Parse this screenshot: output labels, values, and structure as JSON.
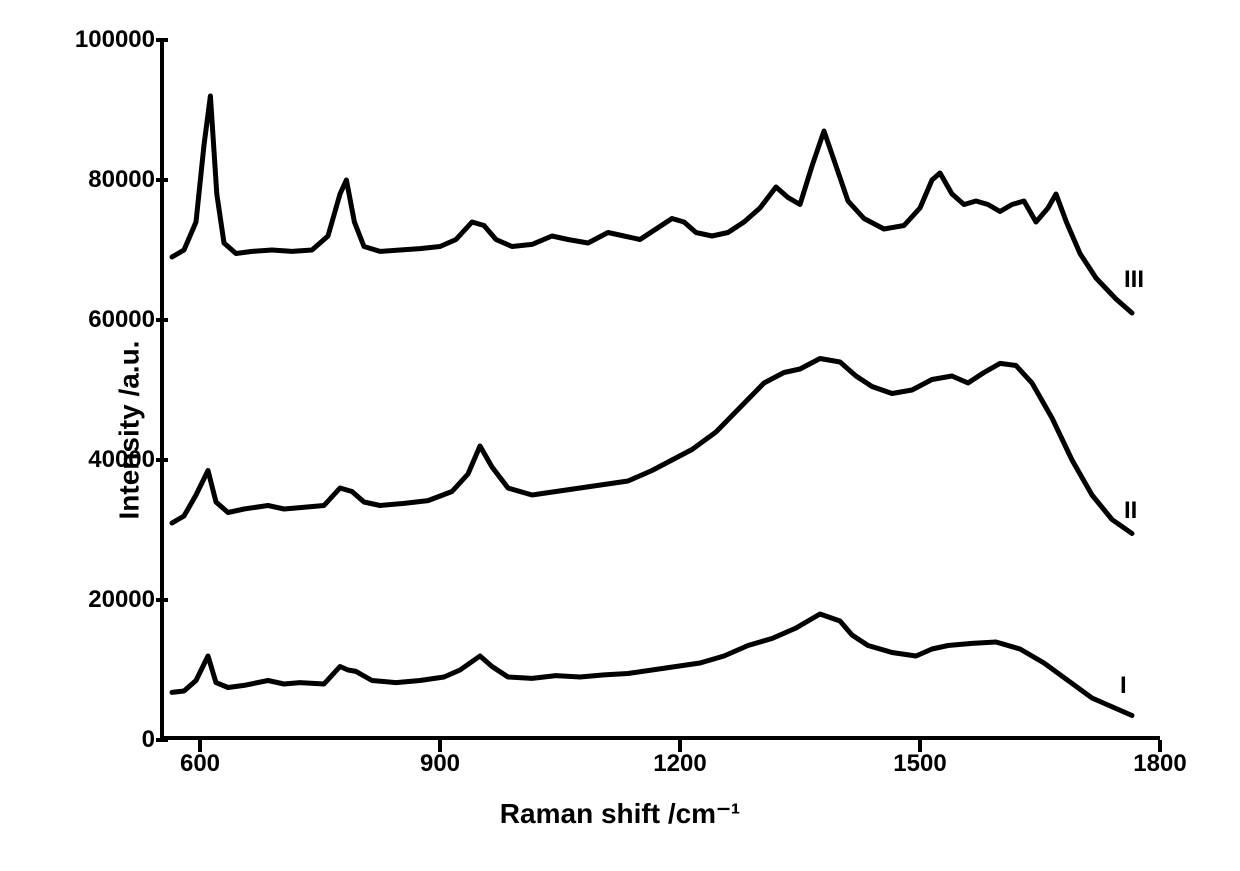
{
  "chart": {
    "type": "line",
    "xlabel": "Raman shift /cm⁻¹",
    "ylabel": "Intensity /a.u.",
    "label_fontsize": 28,
    "tick_fontsize": 24,
    "background_color": "#ffffff",
    "line_color": "#000000",
    "line_width": 5,
    "xlim": [
      550,
      1800
    ],
    "ylim": [
      0,
      100000
    ],
    "xticks": [
      600,
      900,
      1200,
      1500,
      1800
    ],
    "yticks": [
      0,
      20000,
      40000,
      60000,
      80000,
      100000
    ],
    "ytick_labels": [
      "0",
      "20000",
      "40000",
      "60000",
      "80000",
      "100000"
    ],
    "xtick_labels": [
      "600",
      "900",
      "1200",
      "1500",
      "1800"
    ],
    "series": [
      {
        "label": "I",
        "label_x": 1750,
        "label_y": 8000,
        "points": [
          [
            560,
            6800
          ],
          [
            575,
            7000
          ],
          [
            590,
            8500
          ],
          [
            605,
            12000
          ],
          [
            615,
            8200
          ],
          [
            630,
            7500
          ],
          [
            650,
            7800
          ],
          [
            680,
            8500
          ],
          [
            700,
            8000
          ],
          [
            720,
            8200
          ],
          [
            750,
            8000
          ],
          [
            770,
            10500
          ],
          [
            780,
            10000
          ],
          [
            790,
            9800
          ],
          [
            810,
            8500
          ],
          [
            840,
            8200
          ],
          [
            870,
            8500
          ],
          [
            900,
            9000
          ],
          [
            920,
            10000
          ],
          [
            945,
            12000
          ],
          [
            960,
            10500
          ],
          [
            980,
            9000
          ],
          [
            1010,
            8800
          ],
          [
            1040,
            9200
          ],
          [
            1070,
            9000
          ],
          [
            1100,
            9300
          ],
          [
            1130,
            9500
          ],
          [
            1160,
            10000
          ],
          [
            1190,
            10500
          ],
          [
            1220,
            11000
          ],
          [
            1250,
            12000
          ],
          [
            1280,
            13500
          ],
          [
            1310,
            14500
          ],
          [
            1340,
            16000
          ],
          [
            1370,
            18000
          ],
          [
            1395,
            17000
          ],
          [
            1410,
            15000
          ],
          [
            1430,
            13500
          ],
          [
            1460,
            12500
          ],
          [
            1490,
            12000
          ],
          [
            1510,
            13000
          ],
          [
            1530,
            13500
          ],
          [
            1560,
            13800
          ],
          [
            1590,
            14000
          ],
          [
            1620,
            13000
          ],
          [
            1650,
            11000
          ],
          [
            1680,
            8500
          ],
          [
            1710,
            6000
          ],
          [
            1740,
            4500
          ],
          [
            1760,
            3500
          ]
        ]
      },
      {
        "label": "II",
        "label_x": 1755,
        "label_y": 33000,
        "points": [
          [
            560,
            31000
          ],
          [
            575,
            32000
          ],
          [
            590,
            35000
          ],
          [
            605,
            38500
          ],
          [
            615,
            34000
          ],
          [
            630,
            32500
          ],
          [
            650,
            33000
          ],
          [
            680,
            33500
          ],
          [
            700,
            33000
          ],
          [
            720,
            33200
          ],
          [
            750,
            33500
          ],
          [
            770,
            36000
          ],
          [
            785,
            35500
          ],
          [
            800,
            34000
          ],
          [
            820,
            33500
          ],
          [
            850,
            33800
          ],
          [
            880,
            34200
          ],
          [
            910,
            35500
          ],
          [
            930,
            38000
          ],
          [
            945,
            42000
          ],
          [
            960,
            39000
          ],
          [
            980,
            36000
          ],
          [
            1010,
            35000
          ],
          [
            1040,
            35500
          ],
          [
            1070,
            36000
          ],
          [
            1100,
            36500
          ],
          [
            1130,
            37000
          ],
          [
            1160,
            38500
          ],
          [
            1185,
            40000
          ],
          [
            1210,
            41500
          ],
          [
            1240,
            44000
          ],
          [
            1270,
            47500
          ],
          [
            1300,
            51000
          ],
          [
            1325,
            52500
          ],
          [
            1345,
            53000
          ],
          [
            1370,
            54500
          ],
          [
            1395,
            54000
          ],
          [
            1415,
            52000
          ],
          [
            1435,
            50500
          ],
          [
            1460,
            49500
          ],
          [
            1485,
            50000
          ],
          [
            1510,
            51500
          ],
          [
            1535,
            52000
          ],
          [
            1555,
            51000
          ],
          [
            1575,
            52500
          ],
          [
            1595,
            53800
          ],
          [
            1615,
            53500
          ],
          [
            1635,
            51000
          ],
          [
            1660,
            46000
          ],
          [
            1685,
            40000
          ],
          [
            1710,
            35000
          ],
          [
            1735,
            31500
          ],
          [
            1760,
            29500
          ]
        ]
      },
      {
        "label": "III",
        "label_x": 1755,
        "label_y": 66000,
        "points": [
          [
            560,
            69000
          ],
          [
            575,
            70000
          ],
          [
            590,
            74000
          ],
          [
            600,
            85000
          ],
          [
            608,
            92000
          ],
          [
            616,
            78000
          ],
          [
            625,
            71000
          ],
          [
            640,
            69500
          ],
          [
            660,
            69800
          ],
          [
            685,
            70000
          ],
          [
            710,
            69800
          ],
          [
            735,
            70000
          ],
          [
            755,
            72000
          ],
          [
            770,
            78000
          ],
          [
            778,
            80000
          ],
          [
            788,
            74000
          ],
          [
            800,
            70500
          ],
          [
            820,
            69800
          ],
          [
            845,
            70000
          ],
          [
            870,
            70200
          ],
          [
            895,
            70500
          ],
          [
            915,
            71500
          ],
          [
            935,
            74000
          ],
          [
            950,
            73500
          ],
          [
            965,
            71500
          ],
          [
            985,
            70500
          ],
          [
            1010,
            70800
          ],
          [
            1035,
            72000
          ],
          [
            1055,
            71500
          ],
          [
            1080,
            71000
          ],
          [
            1105,
            72500
          ],
          [
            1125,
            72000
          ],
          [
            1145,
            71500
          ],
          [
            1165,
            73000
          ],
          [
            1185,
            74500
          ],
          [
            1200,
            74000
          ],
          [
            1215,
            72500
          ],
          [
            1235,
            72000
          ],
          [
            1255,
            72500
          ],
          [
            1275,
            74000
          ],
          [
            1295,
            76000
          ],
          [
            1315,
            79000
          ],
          [
            1330,
            77500
          ],
          [
            1345,
            76500
          ],
          [
            1360,
            82000
          ],
          [
            1375,
            87000
          ],
          [
            1390,
            82000
          ],
          [
            1405,
            77000
          ],
          [
            1425,
            74500
          ],
          [
            1450,
            73000
          ],
          [
            1475,
            73500
          ],
          [
            1495,
            76000
          ],
          [
            1510,
            80000
          ],
          [
            1520,
            81000
          ],
          [
            1535,
            78000
          ],
          [
            1550,
            76500
          ],
          [
            1565,
            77000
          ],
          [
            1580,
            76500
          ],
          [
            1595,
            75500
          ],
          [
            1610,
            76500
          ],
          [
            1625,
            77000
          ],
          [
            1640,
            74000
          ],
          [
            1655,
            76000
          ],
          [
            1665,
            78000
          ],
          [
            1678,
            74000
          ],
          [
            1695,
            69500
          ],
          [
            1715,
            66000
          ],
          [
            1740,
            63000
          ],
          [
            1760,
            61000
          ]
        ]
      }
    ]
  }
}
